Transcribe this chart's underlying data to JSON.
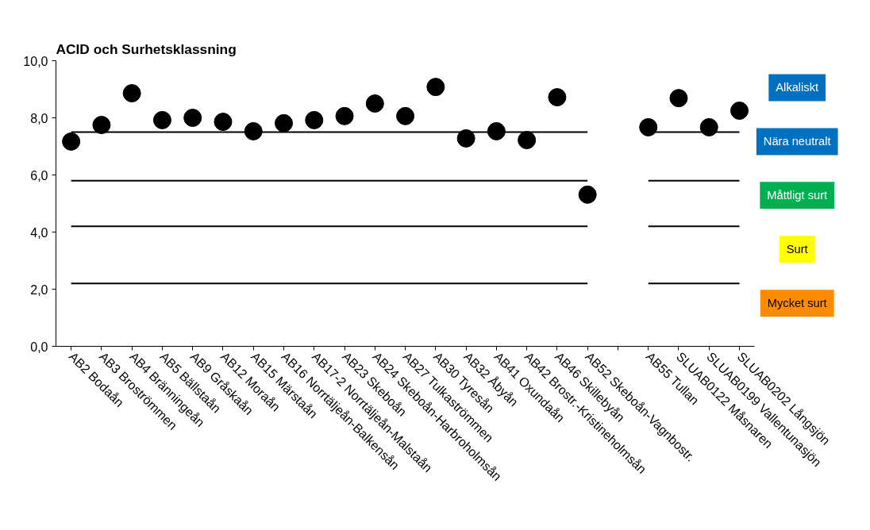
{
  "chart_data": {
    "type": "scatter",
    "title": "ACID  och Surhetsklassning",
    "categories": [
      "AB2 Bodaån",
      "AB3 Broströmmen",
      "AB4 Bränningeån",
      "AB5 Bällstaån",
      "AB9 Gråskaån",
      "AB12 Moraån",
      "AB15 Märstaån",
      "AB16 Norrtäljeån-Balkensån",
      "AB17-2 Norrtäljeån-Malstaån",
      "AB23 Skeboån",
      "AB24 Skeboån-Harbroholmsån",
      "AB27 Tulkaströmmen",
      "AB30 Tyresån",
      "AB32 Åbyån",
      "AB41 Oxundaån",
      "AB42 Brostr.-Kristineholmsån",
      "AB46 Skillebyån",
      "AB52 Skeboån-Vagnbostr.",
      null,
      "AB55 Tullan",
      "SLUAB0122 Måsnaren",
      "SLUAB0199 Vallentunasjön",
      "SLUAB0202 Långsjön"
    ],
    "series": [
      {
        "type": "scatter",
        "color": "#000000",
        "marker": "circle",
        "values": [
          7.17,
          7.75,
          8.86,
          7.92,
          8.0,
          7.86,
          7.53,
          7.81,
          7.92,
          8.06,
          8.5,
          8.06,
          9.08,
          7.28,
          7.53,
          7.22,
          8.72,
          5.31,
          null,
          7.67,
          8.69,
          7.67,
          8.25
        ]
      },
      {
        "type": "line",
        "color": "#000000",
        "marker": "none",
        "values": [
          7.5,
          7.5,
          7.5,
          7.5,
          7.5,
          7.5,
          7.5,
          7.5,
          7.5,
          7.5,
          7.5,
          7.5,
          7.5,
          7.5,
          7.5,
          7.5,
          7.5,
          7.5,
          null,
          7.5,
          7.5,
          7.5,
          7.5
        ]
      },
      {
        "type": "line",
        "color": "#000000",
        "marker": "none",
        "values": [
          5.8,
          5.8,
          5.8,
          5.8,
          5.8,
          5.8,
          5.8,
          5.8,
          5.8,
          5.8,
          5.8,
          5.8,
          5.8,
          5.8,
          5.8,
          5.8,
          5.8,
          5.8,
          null,
          5.8,
          5.8,
          5.8,
          5.8
        ]
      },
      {
        "type": "line",
        "color": "#000000",
        "marker": "none",
        "values": [
          4.2,
          4.2,
          4.2,
          4.2,
          4.2,
          4.2,
          4.2,
          4.2,
          4.2,
          4.2,
          4.2,
          4.2,
          4.2,
          4.2,
          4.2,
          4.2,
          4.2,
          4.2,
          null,
          4.2,
          4.2,
          4.2,
          4.2
        ]
      },
      {
        "type": "line",
        "color": "#000000",
        "marker": "none",
        "values": [
          2.2,
          2.2,
          2.2,
          2.2,
          2.2,
          2.2,
          2.2,
          2.2,
          2.2,
          2.2,
          2.2,
          2.2,
          2.2,
          2.2,
          2.2,
          2.2,
          2.2,
          2.2,
          null,
          2.2,
          2.2,
          2.2,
          2.2
        ]
      }
    ],
    "ylim": [
      0,
      10
    ],
    "yticks": [
      {
        "value": 0,
        "label": "0,0"
      },
      {
        "value": 2,
        "label": "2,0"
      },
      {
        "value": 4,
        "label": "4,0"
      },
      {
        "value": 6,
        "label": "6,0"
      },
      {
        "value": 8,
        "label": "8,0"
      },
      {
        "value": 10,
        "label": "10,0"
      }
    ],
    "grid": false,
    "annotations": [
      "Alkaliskt",
      "Nära neutralt",
      "Måttligt surt",
      "Surt",
      "Mycket surt"
    ]
  }
}
